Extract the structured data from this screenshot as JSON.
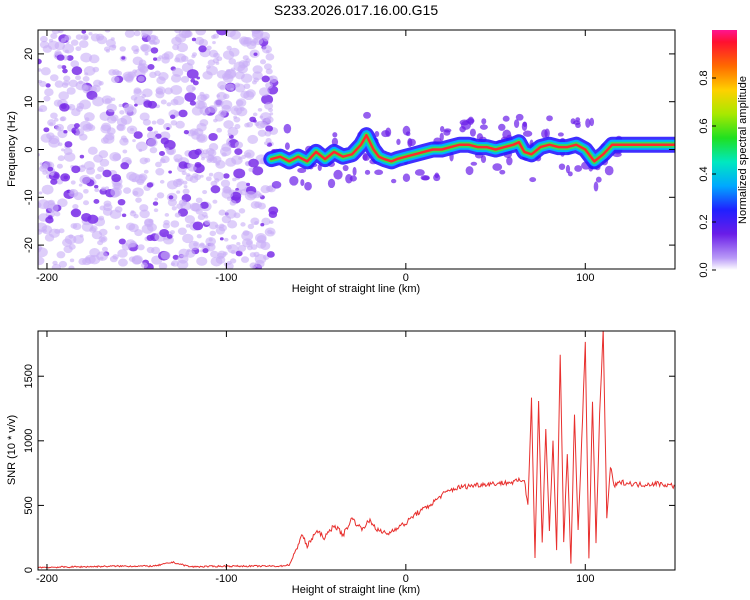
{
  "title": "S233.2026.017.16.00.G15",
  "colors": {
    "snr_line": "#e8302e",
    "blob": "#8a3ef0",
    "track_core": "#ff2a2a",
    "frame": "#000000"
  },
  "chart_data": [
    {
      "type": "heatmap",
      "xlabel": "Height of straight line (km)",
      "ylabel": "Frequency (Hz)",
      "xlim": [
        -205,
        150
      ],
      "ylim": [
        -25,
        25
      ],
      "xticks": [
        -200,
        -100,
        0,
        100
      ],
      "yticks": [
        -20,
        -10,
        0,
        10,
        20
      ],
      "noise_region_x": [
        -205,
        -73
      ],
      "track": {
        "x": [
          -75,
          -70,
          -65,
          -60,
          -55,
          -50,
          -45,
          -40,
          -35,
          -30,
          -25,
          -22,
          -18,
          -15,
          -12,
          -8,
          -5,
          0,
          5,
          10,
          15,
          20,
          25,
          30,
          35,
          40,
          45,
          50,
          55,
          60,
          63,
          66,
          70,
          75,
          80,
          85,
          90,
          95,
          100,
          105,
          110,
          115,
          150
        ],
        "y": [
          -2,
          -1.5,
          -2.5,
          -1.5,
          -2.5,
          -0.5,
          -2,
          -0.5,
          -1.5,
          -1,
          1,
          3,
          0,
          -1.5,
          -2,
          -2.5,
          -2,
          -1.5,
          -1,
          -0.5,
          0,
          0,
          0.5,
          1,
          1,
          0.5,
          0.5,
          0,
          0.5,
          1,
          1.5,
          -0.5,
          -1,
          0.5,
          1,
          0.5,
          0.5,
          1,
          0,
          -2.5,
          -1,
          1,
          1
        ]
      },
      "colorbar": {
        "label": "Normalized spectral amplitude",
        "ticks": [
          "0.0",
          "0.2",
          "0.4",
          "0.6",
          "0.8"
        ],
        "range": [
          0,
          1
        ]
      }
    },
    {
      "type": "line",
      "xlabel": "Height of straight line (km)",
      "ylabel": "SNR (10 * v/v)",
      "xlim": [
        -205,
        150
      ],
      "ylim": [
        0,
        1850
      ],
      "xticks": [
        -200,
        -100,
        0,
        100
      ],
      "yticks": [
        0,
        500,
        1000,
        1500
      ],
      "series": [
        {
          "x": [
            -205,
            -180,
            -160,
            -140,
            -130,
            -120,
            -100,
            -80,
            -70,
            -65,
            -62,
            -58,
            -55,
            -50,
            -45,
            -40,
            -35,
            -30,
            -25,
            -20,
            -15,
            -10,
            -5,
            0,
            5,
            10,
            15,
            20,
            25,
            30,
            40,
            50,
            60,
            66,
            68,
            70,
            72,
            74,
            76,
            78,
            80,
            82,
            84,
            86,
            88,
            90,
            92,
            94,
            96,
            98,
            100,
            102,
            104,
            106,
            108,
            110,
            112,
            114,
            116,
            120,
            130,
            140,
            150
          ],
          "y": [
            20,
            25,
            30,
            30,
            60,
            25,
            30,
            30,
            30,
            40,
            120,
            280,
            180,
            300,
            250,
            350,
            270,
            400,
            320,
            380,
            300,
            280,
            330,
            360,
            430,
            470,
            520,
            580,
            620,
            640,
            660,
            670,
            680,
            700,
            500,
            1330,
            100,
            1300,
            200,
            1100,
            300,
            1000,
            150,
            1680,
            200,
            900,
            50,
            1200,
            300,
            1000,
            1750,
            100,
            1300,
            200,
            1200,
            1850,
            400,
            800,
            650,
            680,
            660,
            670,
            650
          ]
        }
      ]
    }
  ]
}
